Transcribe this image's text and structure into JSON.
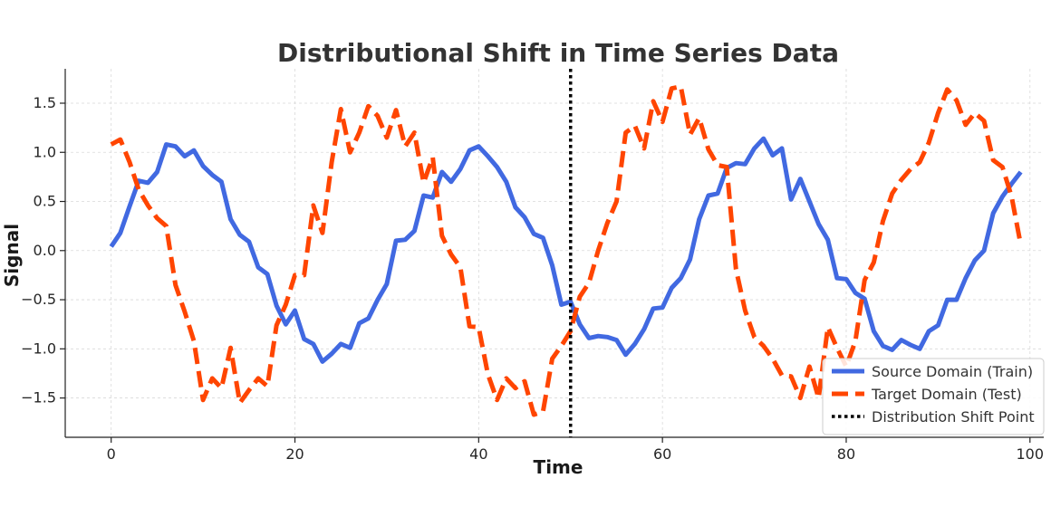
{
  "chart_data": {
    "type": "line",
    "title": "Distributional Shift in Time Series Data",
    "xlabel": "Time",
    "ylabel": "Signal",
    "xlim": [
      -5,
      101.5
    ],
    "ylim": [
      -1.9,
      1.85
    ],
    "xticks": [
      0,
      20,
      40,
      60,
      80,
      100
    ],
    "xtick_labels": [
      "0",
      "20",
      "40",
      "60",
      "80",
      "100"
    ],
    "yticks": [
      -1.5,
      -1.0,
      -0.5,
      0.0,
      0.5,
      1.0,
      1.5
    ],
    "ytick_labels": [
      "−1.5",
      "−1.0",
      "−0.5",
      "0.0",
      "0.5",
      "1.0",
      "1.5"
    ],
    "grid": true,
    "legend_position": "lower-right",
    "shift_point": {
      "x": 50,
      "name": "Distribution Shift Point",
      "color": "#000000",
      "style": "dotted"
    },
    "series": [
      {
        "name": "Source Domain (Train)",
        "color": "#4169E1",
        "style": "solid",
        "x": [
          0,
          1,
          2,
          3,
          4,
          5,
          6,
          7,
          8,
          9,
          10,
          11,
          12,
          13,
          14,
          15,
          16,
          17,
          18,
          19,
          20,
          21,
          22,
          23,
          24,
          25,
          26,
          27,
          28,
          29,
          30,
          31,
          32,
          33,
          34,
          35,
          36,
          37,
          38,
          39,
          40,
          41,
          42,
          43,
          44,
          45,
          46,
          47,
          48,
          49,
          50,
          51,
          52,
          53,
          54,
          55,
          56,
          57,
          58,
          59,
          60,
          61,
          62,
          63,
          64,
          65,
          66,
          67,
          68,
          69,
          70,
          71,
          72,
          73,
          74,
          75,
          76,
          77,
          78,
          79,
          80,
          81,
          82,
          83,
          84,
          85,
          86,
          87,
          88,
          89,
          90,
          91,
          92,
          93,
          94,
          95,
          96,
          97,
          98,
          99
        ],
        "values": [
          0.04,
          0.18,
          0.45,
          0.71,
          0.69,
          0.8,
          1.08,
          1.06,
          0.96,
          1.02,
          0.86,
          0.77,
          0.7,
          0.32,
          0.16,
          0.09,
          -0.17,
          -0.24,
          -0.56,
          -0.75,
          -0.61,
          -0.9,
          -0.95,
          -1.13,
          -1.05,
          -0.95,
          -0.99,
          -0.74,
          -0.69,
          -0.5,
          -0.34,
          0.1,
          0.11,
          0.2,
          0.56,
          0.54,
          0.8,
          0.7,
          0.83,
          1.02,
          1.06,
          0.96,
          0.85,
          0.7,
          0.44,
          0.34,
          0.17,
          0.13,
          -0.15,
          -0.55,
          -0.52,
          -0.75,
          -0.89,
          -0.87,
          -0.88,
          -0.91,
          -1.06,
          -0.95,
          -0.8,
          -0.59,
          -0.58,
          -0.38,
          -0.28,
          -0.09,
          0.32,
          0.56,
          0.58,
          0.84,
          0.89,
          0.88,
          1.04,
          1.14,
          0.97,
          1.04,
          0.52,
          0.73,
          0.5,
          0.27,
          0.11,
          -0.28,
          -0.29,
          -0.43,
          -0.49,
          -0.82,
          -0.97,
          -1.01,
          -0.91,
          -0.96,
          -1.0,
          -0.82,
          -0.76,
          -0.5,
          -0.5,
          -0.28,
          -0.1,
          0.0,
          0.38,
          0.55,
          0.68,
          0.8
        ]
      },
      {
        "name": "Target Domain (Test)",
        "color": "#FF4500",
        "style": "dashed",
        "x": [
          0,
          1,
          2,
          3,
          4,
          5,
          6,
          7,
          8,
          9,
          10,
          11,
          12,
          13,
          14,
          15,
          16,
          17,
          18,
          19,
          20,
          21,
          22,
          23,
          24,
          25,
          26,
          27,
          28,
          29,
          30,
          31,
          32,
          33,
          34,
          35,
          36,
          37,
          38,
          39,
          40,
          41,
          42,
          43,
          44,
          45,
          46,
          47,
          48,
          49,
          50,
          51,
          52,
          53,
          54,
          55,
          56,
          57,
          58,
          59,
          60,
          61,
          62,
          63,
          64,
          65,
          66,
          67,
          68,
          69,
          70,
          71,
          72,
          73,
          74,
          75,
          76,
          77,
          78,
          79,
          80,
          81,
          82,
          83,
          84,
          85,
          86,
          87,
          88,
          89,
          90,
          91,
          92,
          93,
          94,
          95,
          96,
          97,
          98,
          99
        ],
        "values": [
          1.08,
          1.13,
          0.9,
          0.62,
          0.46,
          0.33,
          0.25,
          -0.35,
          -0.62,
          -0.92,
          -1.52,
          -1.3,
          -1.4,
          -0.99,
          -1.55,
          -1.42,
          -1.3,
          -1.38,
          -0.76,
          -0.55,
          -0.25,
          -0.25,
          0.46,
          0.18,
          0.9,
          1.44,
          1.0,
          1.2,
          1.47,
          1.37,
          1.15,
          1.43,
          1.06,
          1.2,
          0.69,
          0.95,
          0.15,
          -0.04,
          -0.17,
          -0.77,
          -0.78,
          -1.26,
          -1.52,
          -1.3,
          -1.4,
          -1.33,
          -1.67,
          -1.64,
          -1.1,
          -0.97,
          -0.82,
          -0.47,
          -0.33,
          0.0,
          0.28,
          0.5,
          1.2,
          1.27,
          1.04,
          1.52,
          1.31,
          1.65,
          1.67,
          1.18,
          1.35,
          1.03,
          0.87,
          0.85,
          -0.19,
          -0.61,
          -0.88,
          -0.97,
          -1.1,
          -1.27,
          -1.28,
          -1.5,
          -1.18,
          -1.5,
          -0.78,
          -0.99,
          -1.18,
          -0.92,
          -0.3,
          -0.12,
          0.3,
          0.58,
          0.72,
          0.83,
          0.9,
          1.1,
          1.4,
          1.64,
          1.53,
          1.28,
          1.4,
          1.32,
          0.92,
          0.85,
          0.55,
          0.06
        ]
      }
    ]
  }
}
